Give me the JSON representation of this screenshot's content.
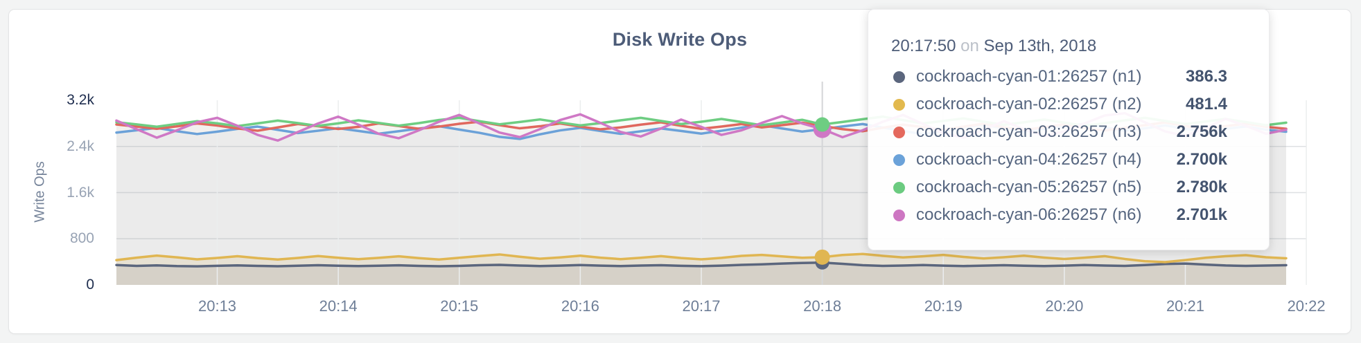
{
  "chart_data": {
    "type": "line",
    "title": "Disk Write Ops",
    "ylabel": "Write Ops",
    "ylim": [
      0,
      3200
    ],
    "grid": true,
    "ytick_values": [
      3200,
      2400,
      1600,
      800,
      0
    ],
    "ytick_labels": [
      "3.2k",
      "2.4k",
      "1.6k",
      "800",
      "0"
    ],
    "xtick_labels": [
      "20:13",
      "20:14",
      "20:15",
      "20:16",
      "20:17",
      "20:18",
      "20:19",
      "20:20",
      "20:21",
      "20:22"
    ],
    "xtick_offsets_seconds": [
      50,
      110,
      170,
      230,
      290,
      350,
      410,
      470,
      530,
      590
    ],
    "x_start_time": "20:12:10",
    "x_interval_seconds": 10,
    "hover_index": 35,
    "hover_time": "20:17:50",
    "series": [
      {
        "name": "cockroach-cyan-01:26257 (n1)",
        "node": "n1",
        "color": "#5b667d",
        "values": [
          345,
          330,
          338,
          326,
          322,
          331,
          338,
          330,
          324,
          333,
          342,
          333,
          326,
          332,
          340,
          330,
          323,
          330,
          341,
          348,
          336,
          327,
          334,
          344,
          334,
          326,
          335,
          342,
          331,
          325,
          334,
          347,
          356,
          370,
          381,
          386.3,
          366,
          341,
          330,
          336,
          344,
          334,
          327,
          334,
          342,
          332,
          326,
          334,
          344,
          336,
          330,
          344,
          362,
          370,
          352,
          337,
          330,
          336,
          342
        ]
      },
      {
        "name": "cockroach-cyan-02:26257 (n2)",
        "node": "n2",
        "color": "#e0b652",
        "values": [
          430,
          472,
          508,
          478,
          444,
          468,
          498,
          464,
          440,
          467,
          500,
          470,
          446,
          469,
          496,
          465,
          441,
          470,
          500,
          528,
          488,
          454,
          477,
          506,
          472,
          447,
          471,
          499,
          466,
          443,
          469,
          503,
          520,
          494,
          470,
          481.4,
          518,
          536,
          504,
          477,
          496,
          520,
          486,
          458,
          480,
          506,
          474,
          449,
          472,
          498,
          450,
          410,
          395,
          430,
          470,
          498,
          515,
          480,
          462
        ]
      },
      {
        "name": "cockroach-cyan-03:26257 (n3)",
        "node": "n3",
        "color": "#e0685e",
        "values": [
          2780,
          2745,
          2705,
          2748,
          2798,
          2762,
          2712,
          2672,
          2730,
          2788,
          2750,
          2702,
          2740,
          2798,
          2754,
          2706,
          2744,
          2792,
          2828,
          2768,
          2714,
          2750,
          2798,
          2744,
          2696,
          2730,
          2778,
          2818,
          2758,
          2706,
          2744,
          2788,
          2730,
          2768,
          2812,
          2756,
          2700,
          2664,
          2724,
          2778,
          2734,
          2690,
          2744,
          2794,
          2730,
          2684,
          2734,
          2782,
          2720,
          2676,
          2724,
          2768,
          2816,
          2754,
          2704,
          2752,
          2796,
          2740,
          2706
        ]
      },
      {
        "name": "cockroach-cyan-04:26257 (n4)",
        "node": "n4",
        "color": "#6ba1d8",
        "values": [
          2640,
          2680,
          2720,
          2664,
          2615,
          2656,
          2704,
          2744,
          2688,
          2632,
          2672,
          2716,
          2668,
          2620,
          2664,
          2710,
          2750,
          2692,
          2636,
          2566,
          2530,
          2610,
          2678,
          2722,
          2668,
          2618,
          2662,
          2712,
          2668,
          2622,
          2672,
          2726,
          2768,
          2712,
          2658,
          2700,
          2746,
          2788,
          2728,
          2668,
          2612,
          2668,
          2728,
          2774,
          2714,
          2658,
          2704,
          2754,
          2792,
          2732,
          2672,
          2714,
          2764,
          2708,
          2658,
          2704,
          2748,
          2690,
          2655
        ]
      },
      {
        "name": "cockroach-cyan-05:26257 (n5)",
        "node": "n5",
        "color": "#6ecd82",
        "values": [
          2820,
          2782,
          2742,
          2790,
          2838,
          2800,
          2752,
          2800,
          2848,
          2804,
          2756,
          2800,
          2852,
          2808,
          2760,
          2804,
          2858,
          2896,
          2838,
          2784,
          2824,
          2868,
          2814,
          2764,
          2804,
          2852,
          2896,
          2842,
          2788,
          2828,
          2876,
          2822,
          2768,
          2814,
          2862,
          2780,
          2824,
          2872,
          2916,
          2856,
          2798,
          2842,
          2886,
          2828,
          2774,
          2818,
          2866,
          2812,
          2758,
          2802,
          2852,
          2896,
          2842,
          2788,
          2832,
          2876,
          2822,
          2768,
          2812
        ]
      },
      {
        "name": "cockroach-cyan-06:26257 (n6)",
        "node": "n6",
        "color": "#cf78c5",
        "values": [
          2848,
          2700,
          2552,
          2680,
          2818,
          2896,
          2758,
          2600,
          2502,
          2650,
          2798,
          2916,
          2778,
          2620,
          2542,
          2680,
          2828,
          2946,
          2798,
          2640,
          2562,
          2700,
          2858,
          2956,
          2808,
          2650,
          2572,
          2710,
          2866,
          2738,
          2600,
          2680,
          2808,
          2926,
          2798,
          2701,
          2560,
          2680,
          2828,
          2946,
          2788,
          2630,
          2552,
          2690,
          2838,
          2700,
          2580,
          2660,
          2798,
          2936,
          2976,
          2818,
          2660,
          2582,
          2720,
          2876,
          2758,
          2620,
          2690
        ]
      }
    ]
  },
  "tooltip": {
    "time": "20:17:50",
    "connector": "on",
    "date": "Sep 13th, 2018",
    "rows": [
      {
        "label": "cockroach-cyan-01:26257 (n1)",
        "value": "386.3",
        "color": "#5b667d"
      },
      {
        "label": "cockroach-cyan-02:26257 (n2)",
        "value": "481.4",
        "color": "#e2b94e"
      },
      {
        "label": "cockroach-cyan-03:26257 (n3)",
        "value": "2.756k",
        "color": "#e4695d"
      },
      {
        "label": "cockroach-cyan-04:26257 (n4)",
        "value": "2.700k",
        "color": "#6ba2d9"
      },
      {
        "label": "cockroach-cyan-05:26257 (n5)",
        "value": "2.780k",
        "color": "#6bcb80"
      },
      {
        "label": "cockroach-cyan-06:26257 (n6)",
        "value": "2.701k",
        "color": "#cd76c2"
      }
    ]
  }
}
